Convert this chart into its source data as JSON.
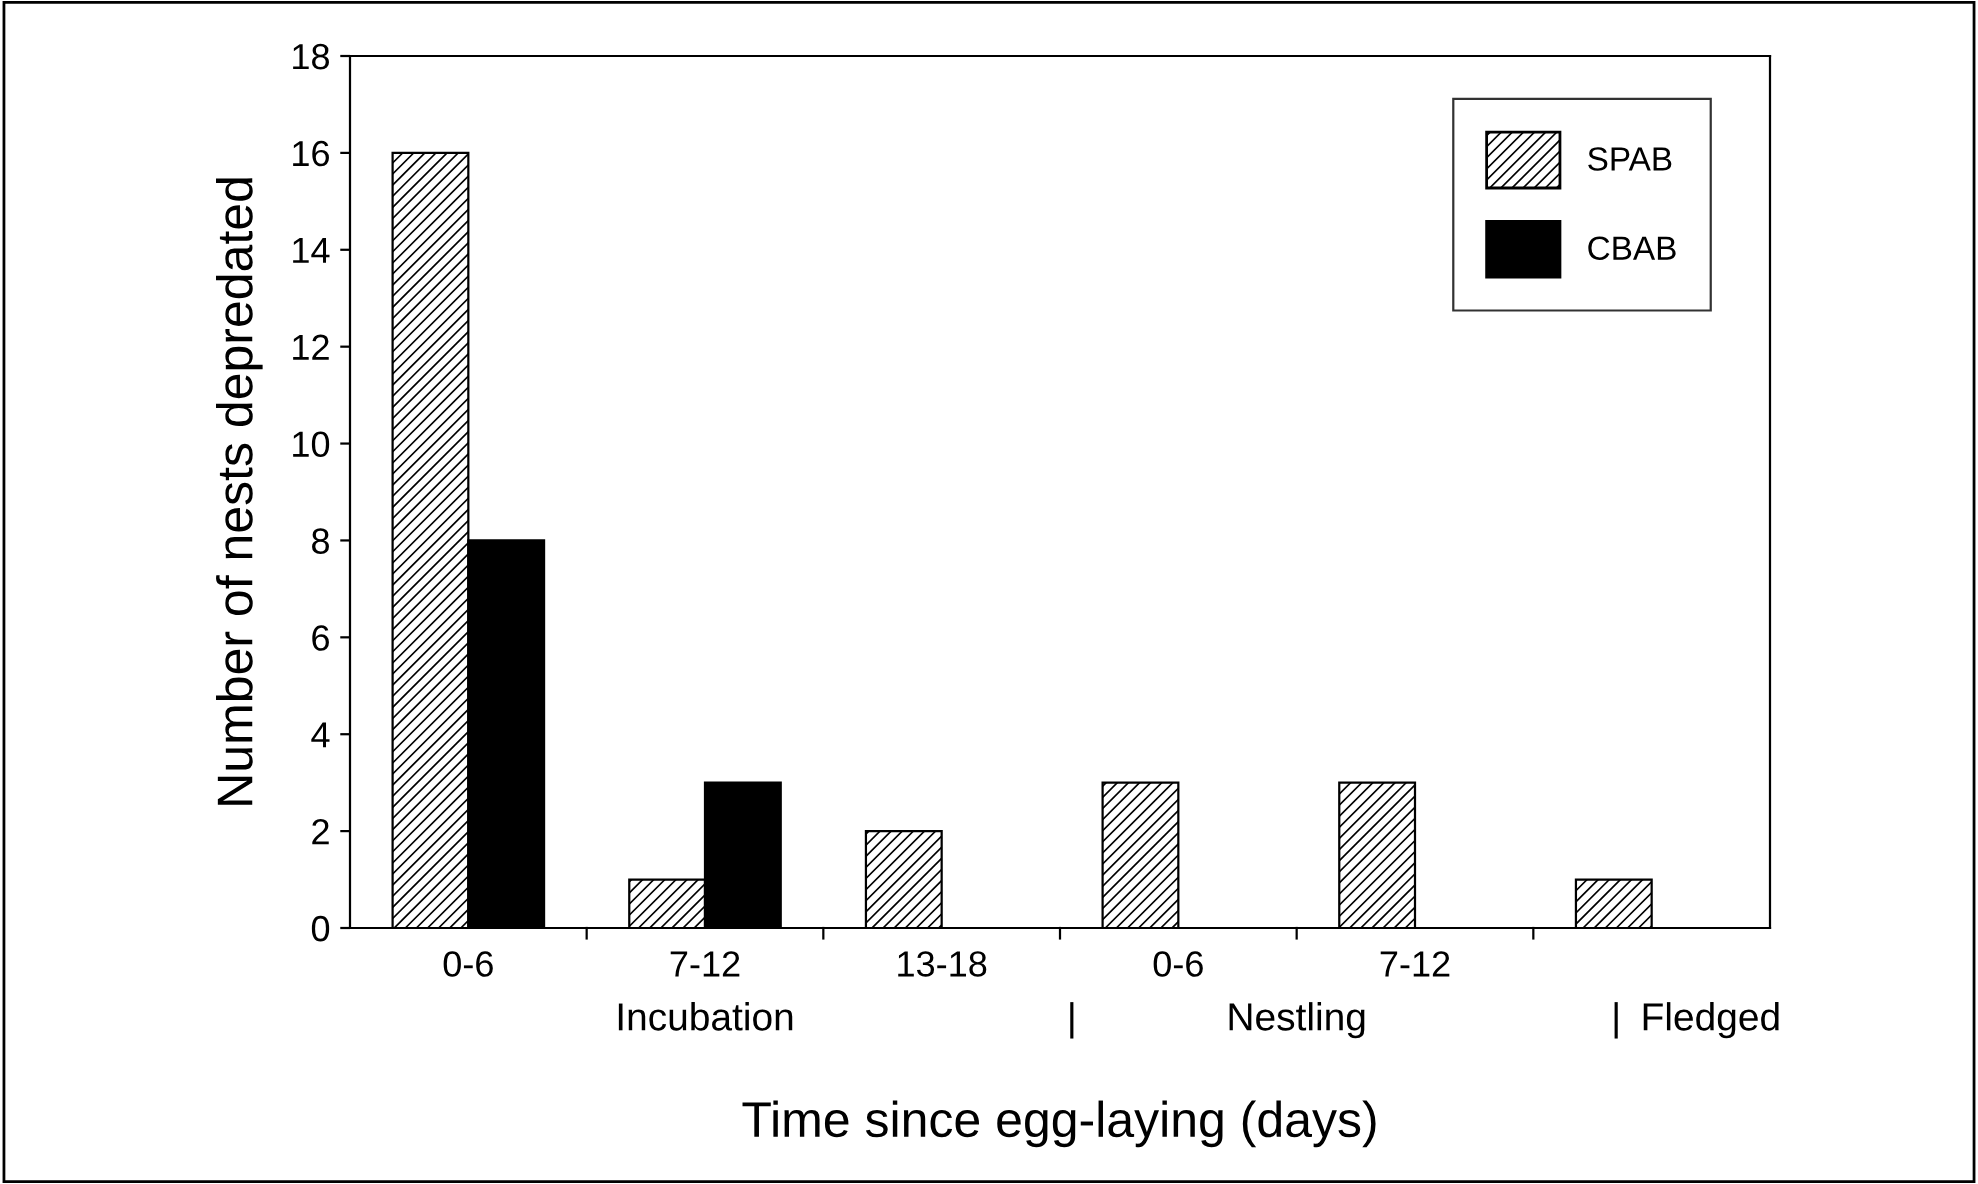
{
  "chart_data": {
    "type": "bar",
    "xlabel": "Time since egg-laying (days)",
    "ylabel": "Number of nests depredated",
    "categories": [
      "0-6",
      "7-12",
      "13-18",
      "0-6",
      "7-12",
      null
    ],
    "series": [
      {
        "name": "SPAB",
        "color": "#000000",
        "values": [
          16,
          1,
          2,
          3,
          3,
          1
        ]
      },
      {
        "name": "CBAB",
        "color": "#000000",
        "values": [
          8,
          3,
          0,
          0,
          0,
          0
        ]
      }
    ],
    "ylim": [
      0,
      18
    ],
    "yticks": [
      0,
      2,
      4,
      6,
      8,
      10,
      12,
      14,
      16,
      18
    ],
    "annotations": [
      "Incubation",
      "|",
      "Nestling",
      "|",
      "Fledged"
    ],
    "legend": "top right",
    "grid": false
  }
}
